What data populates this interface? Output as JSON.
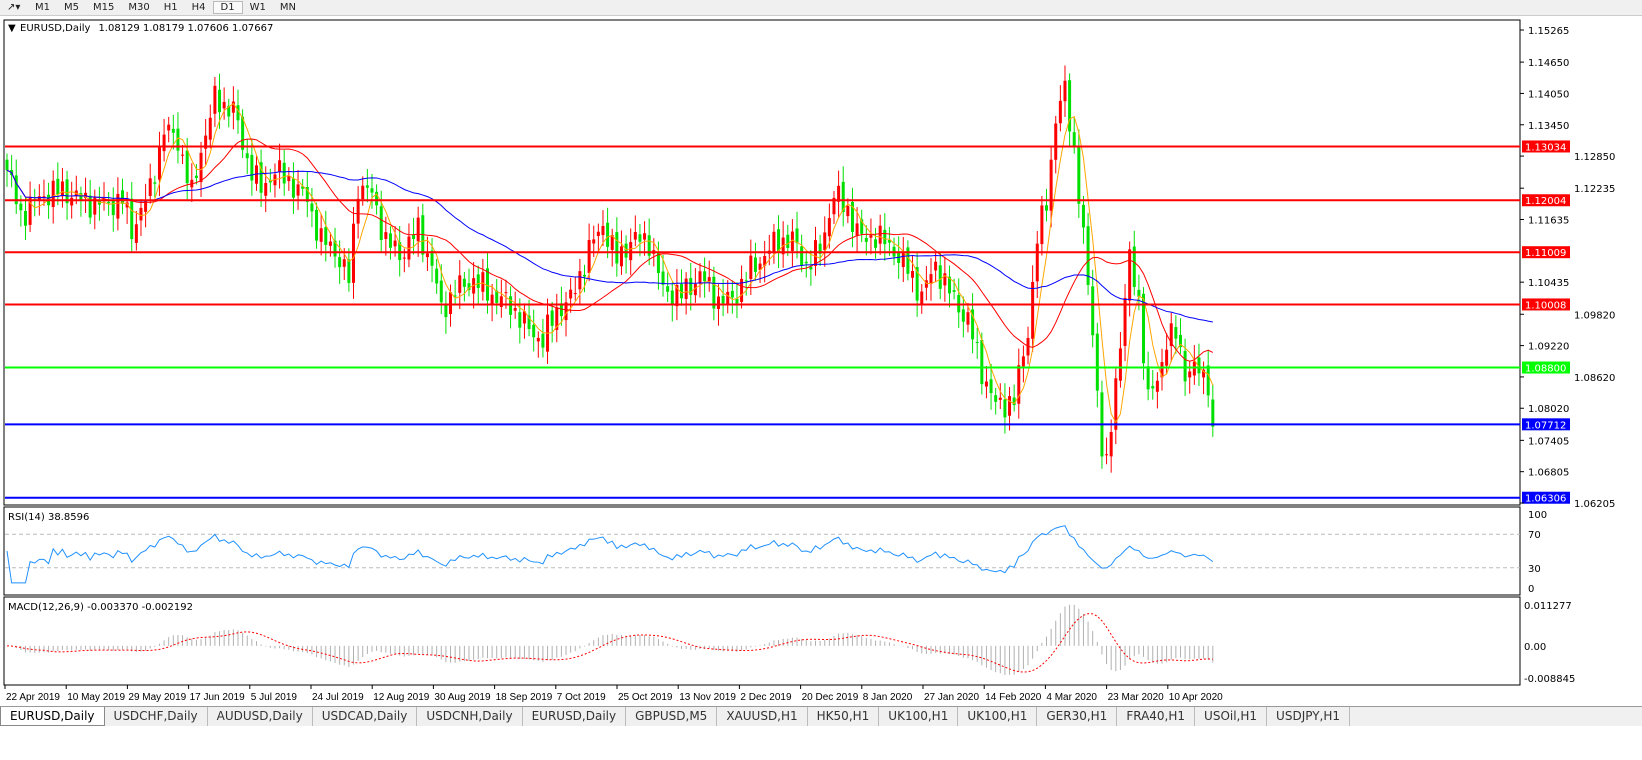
{
  "toolbar": {
    "timeframes": [
      "M1",
      "M5",
      "M15",
      "M30",
      "H1",
      "H4",
      "D1",
      "W1",
      "MN"
    ],
    "active": "D1"
  },
  "header": {
    "symbol": "EURUSD,Daily",
    "ohlc": "1.08129 1.08179 1.07606 1.07667"
  },
  "tabs": [
    "EURUSD,Daily",
    "USDCHF,Daily",
    "AUDUSD,Daily",
    "USDCAD,Daily",
    "USDCNH,Daily",
    "EURUSD,Daily",
    "GBPUSD,M5",
    "XAUUSD,H1",
    "HK50,H1",
    "UK100,H1",
    "UK100,H1",
    "GER30,H1",
    "FRA40,H1",
    "USOil,H1",
    "USDJPY,H1"
  ],
  "chart_data": {
    "type": "candlestick",
    "title": "EURUSD,Daily",
    "colors": {
      "bull": "#ff0000",
      "bear": "#00e000",
      "ma_fast": "#ffa500",
      "ma_mid": "#ff0000",
      "ma_slow": "#0000ff",
      "rsi": "#1e90ff",
      "macd_hist": "#b0b0b0",
      "macd_signal": "#ff0000"
    },
    "price_ticks": [
      "1.15265",
      "1.14650",
      "1.14050",
      "1.13450",
      "1.12850",
      "1.12235",
      "1.11635",
      "1.10435",
      "1.09820",
      "1.09220",
      "1.08620",
      "1.08020",
      "1.07405",
      "1.06805",
      "1.06205"
    ],
    "ylim": [
      1.06205,
      1.15265
    ],
    "x_tick_labels": [
      "22 Apr 2019",
      "10 May 2019",
      "29 May 2019",
      "17 Jun 2019",
      "5 Jul 2019",
      "24 Jul 2019",
      "12 Aug 2019",
      "30 Aug 2019",
      "18 Sep 2019",
      "7 Oct 2019",
      "25 Oct 2019",
      "13 Nov 2019",
      "2 Dec 2019",
      "20 Dec 2019",
      "8 Jan 2020",
      "27 Jan 2020",
      "14 Feb 2020",
      "4 Mar 2020",
      "23 Mar 2020",
      "10 Apr 2020"
    ],
    "bars": 262,
    "close_keypoints": [
      [
        0,
        1.1258
      ],
      [
        3,
        1.1172
      ],
      [
        8,
        1.1211
      ],
      [
        12,
        1.122
      ],
      [
        16,
        1.1201
      ],
      [
        21,
        1.1191
      ],
      [
        25,
        1.1201
      ],
      [
        27,
        1.1143
      ],
      [
        31,
        1.122
      ],
      [
        34,
        1.1335
      ],
      [
        37,
        1.1316
      ],
      [
        40,
        1.1211
      ],
      [
        42,
        1.1297
      ],
      [
        45,
        1.1393
      ],
      [
        49,
        1.1374
      ],
      [
        52,
        1.1278
      ],
      [
        55,
        1.122
      ],
      [
        58,
        1.1258
      ],
      [
        62,
        1.123
      ],
      [
        65,
        1.1201
      ],
      [
        68,
        1.1124
      ],
      [
        71,
        1.1105
      ],
      [
        74,
        1.1048
      ],
      [
        76,
        1.123
      ],
      [
        79,
        1.1211
      ],
      [
        82,
        1.1124
      ],
      [
        85,
        1.1095
      ],
      [
        89,
        1.1143
      ],
      [
        92,
        1.1076
      ],
      [
        94,
        1.099
      ],
      [
        97,
        1.1028
      ],
      [
        101,
        1.1048
      ],
      [
        105,
        1.1019
      ],
      [
        109,
        1.1
      ],
      [
        113,
        1.0952
      ],
      [
        116,
        1.0933
      ],
      [
        119,
        1.099
      ],
      [
        122,
        1.1009
      ],
      [
        126,
        1.1105
      ],
      [
        129,
        1.1155
      ],
      [
        132,
        1.1086
      ],
      [
        135,
        1.1124
      ],
      [
        139,
        1.1124
      ],
      [
        142,
        1.1028
      ],
      [
        146,
        1.1019
      ],
      [
        150,
        1.1057
      ],
      [
        154,
        1.1009
      ],
      [
        157,
        1.1009
      ],
      [
        160,
        1.1057
      ],
      [
        163,
        1.1086
      ],
      [
        167,
        1.1124
      ],
      [
        170,
        1.1124
      ],
      [
        173,
        1.1076
      ],
      [
        176,
        1.1105
      ],
      [
        179,
        1.1211
      ],
      [
        182,
        1.1182
      ],
      [
        185,
        1.1124
      ],
      [
        188,
        1.1134
      ],
      [
        192,
        1.1105
      ],
      [
        195,
        1.1067
      ],
      [
        198,
        1.1019
      ],
      [
        201,
        1.1076
      ],
      [
        205,
        1.1009
      ],
      [
        208,
        1.0971
      ],
      [
        211,
        1.0874
      ],
      [
        214,
        1.0807
      ],
      [
        218,
        1.0817
      ],
      [
        221,
        1.0952
      ],
      [
        223,
        1.1124
      ],
      [
        225,
        1.1201
      ],
      [
        227,
        1.1355
      ],
      [
        229,
        1.1411
      ],
      [
        231,
        1.1297
      ],
      [
        233,
        1.1124
      ],
      [
        235,
        1.0952
      ],
      [
        237,
        1.0722
      ],
      [
        238,
        1.0684
      ],
      [
        240,
        1.0856
      ],
      [
        242,
        1.1009
      ],
      [
        243,
        1.1086
      ],
      [
        245,
        1.1009
      ],
      [
        247,
        1.0817
      ],
      [
        249,
        1.0856
      ],
      [
        251,
        1.0933
      ],
      [
        253,
        1.0943
      ],
      [
        255,
        1.0874
      ],
      [
        258,
        1.0874
      ],
      [
        260,
        1.0856
      ],
      [
        261,
        1.07667
      ]
    ],
    "hlines": [
      {
        "price": 1.13034,
        "label": "1.13034",
        "color": "#ff0000"
      },
      {
        "price": 1.12004,
        "label": "1.12004",
        "color": "#ff0000"
      },
      {
        "price": 1.11009,
        "label": "1.11009",
        "color": "#ff0000"
      },
      {
        "price": 1.10008,
        "label": "1.10008",
        "color": "#ff0000"
      },
      {
        "price": 1.088,
        "label": "1.08800",
        "color": "#00ff00"
      },
      {
        "price": 1.07712,
        "label": "1.07712",
        "color": "#0000ff"
      },
      {
        "price": 1.06306,
        "label": "1.06306",
        "color": "#0000ff"
      }
    ],
    "rsi": {
      "label": "RSI(14) 38.8596",
      "ticks": [
        "100",
        "70",
        "30",
        "0"
      ],
      "levels": [
        70,
        30
      ]
    },
    "macd": {
      "label": "MACD(12,26,9) -0.003370 -0.002192",
      "ticks": [
        "0.011277",
        "0.00",
        "-0.008845"
      ],
      "ylim": [
        -0.008845,
        0.011277
      ]
    }
  }
}
